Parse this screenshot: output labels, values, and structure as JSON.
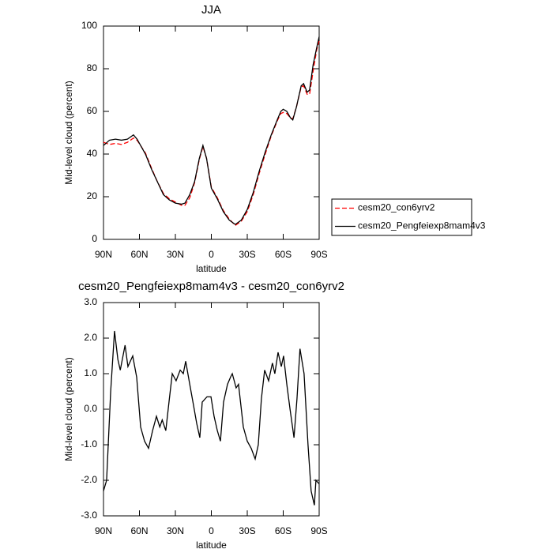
{
  "chart_data": [
    {
      "type": "line",
      "title": "JJA",
      "ylabel": "Mid-level cloud (percent)",
      "xlabel": "latitude",
      "x": [
        90,
        85,
        80,
        75,
        70,
        65,
        62,
        55,
        50,
        45,
        40,
        35,
        30,
        25,
        22,
        18,
        14,
        10,
        7,
        4,
        0,
        -5,
        -10,
        -15,
        -20,
        -25,
        -30,
        -35,
        -40,
        -45,
        -50,
        -55,
        -58,
        -60,
        -63,
        -66,
        -68,
        -71,
        -75,
        -77,
        -80,
        -82,
        -85,
        -88,
        -90
      ],
      "series": [
        {
          "name": "cesm20_con6yrv2",
          "color": "#ff0000",
          "dashed": true,
          "values": [
            45.5,
            44.5,
            45,
            44.5,
            45.5,
            47.5,
            46.5,
            40.5,
            33.5,
            27,
            21.5,
            19,
            17.5,
            16,
            16,
            19.5,
            26.5,
            37.5,
            43.5,
            38,
            24.5,
            19.5,
            13.5,
            9.5,
            6.5,
            8.5,
            13,
            21,
            31,
            40,
            48.5,
            55.5,
            59,
            59.5,
            59,
            57,
            56.5,
            62,
            71.5,
            72,
            68,
            68,
            79,
            89,
            93
          ]
        },
        {
          "name": "cesm20_Pengfeiexp8mam4v3",
          "color": "#000000",
          "dashed": false,
          "values": [
            44,
            46.5,
            47,
            46.5,
            47,
            49,
            47,
            40,
            33,
            27,
            21,
            18.5,
            17,
            16.5,
            17,
            21,
            27,
            38,
            44,
            38,
            24,
            19,
            13,
            9,
            7,
            9,
            14,
            22,
            32,
            41,
            49,
            56,
            60,
            61,
            60,
            57,
            56,
            62,
            72,
            73,
            69,
            70,
            82,
            90,
            95
          ]
        }
      ],
      "xlim": [
        90,
        -90
      ],
      "xticks": [
        {
          "value": 90,
          "label": "90N"
        },
        {
          "value": 60,
          "label": "60N"
        },
        {
          "value": 30,
          "label": "30N"
        },
        0,
        {
          "value": -30,
          "label": "30S"
        },
        {
          "value": -60,
          "label": "60S"
        },
        {
          "value": -90,
          "label": "90S"
        }
      ],
      "ylim": [
        0,
        100
      ],
      "yticks": [
        0,
        20,
        40,
        60,
        80,
        100
      ],
      "legend": "right"
    },
    {
      "type": "line",
      "title": "cesm20_Pengfeiexp8mam4v3 - cesm20_con6yrv2",
      "ylabel": "Mid-level cloud (percent)",
      "xlabel": "latitude",
      "x": [
        90,
        87.4,
        84,
        80.8,
        78,
        76,
        72,
        69.6,
        65.6,
        62.3,
        59,
        55.7,
        52.4,
        49,
        45.8,
        43,
        41,
        38,
        35,
        32.6,
        29.4,
        26,
        23.4,
        21.4,
        18,
        14.8,
        12.2,
        9.6,
        7.6,
        3.6,
        0.3,
        -2.3,
        -5,
        -7.6,
        -10.2,
        -13.5,
        -16,
        -17.5,
        -20.7,
        -22.7,
        -26.7,
        -30,
        -33.3,
        -36.6,
        -39.2,
        -41.8,
        -44.5,
        -47.8,
        -51,
        -53,
        -55.7,
        -58.4,
        -60.3,
        -63,
        -65.7,
        -69,
        -71.5,
        -74,
        -77.4,
        -80.7,
        -83.3,
        -86,
        -87.3,
        -90
      ],
      "values": [
        -2.3,
        -2,
        0.5,
        2.2,
        1.4,
        1.1,
        1.8,
        1.2,
        1.5,
        0.9,
        -0.5,
        -0.9,
        -1.1,
        -0.6,
        -0.2,
        -0.5,
        -0.3,
        -0.6,
        0.3,
        1,
        0.8,
        1.1,
        1,
        1.35,
        0.7,
        0.1,
        -0.4,
        -0.8,
        0.2,
        0.35,
        0.35,
        -0.2,
        -0.6,
        -0.9,
        0.2,
        0.7,
        0.9,
        1,
        0.6,
        0.7,
        -0.5,
        -0.9,
        -1.1,
        -1.4,
        -1,
        0.3,
        1.1,
        0.8,
        1.3,
        1,
        1.6,
        1.2,
        1.5,
        0.7,
        0,
        -0.8,
        0.3,
        1.7,
        1,
        -1,
        -2.3,
        -2.7,
        -2,
        -2.1
      ],
      "color": "#000000",
      "xlim": [
        90,
        -90
      ],
      "xticks": [
        {
          "value": 90,
          "label": "90N"
        },
        {
          "value": 60,
          "label": "60N"
        },
        {
          "value": 30,
          "label": "30N"
        },
        0,
        {
          "value": -30,
          "label": "30S"
        },
        {
          "value": -60,
          "label": "60S"
        },
        {
          "value": -90,
          "label": "90S"
        }
      ],
      "ylim": [
        -3,
        3
      ],
      "yticks": [
        {
          "value": -3,
          "label": "-3.0"
        },
        {
          "value": -2,
          "label": "-2.0"
        },
        {
          "value": -1,
          "label": "-1.0"
        },
        {
          "value": 0,
          "label": "0.0"
        },
        {
          "value": 1,
          "label": "1.0"
        },
        {
          "value": 2,
          "label": "2.0"
        },
        {
          "value": 3,
          "label": "3.0"
        }
      ]
    }
  ]
}
